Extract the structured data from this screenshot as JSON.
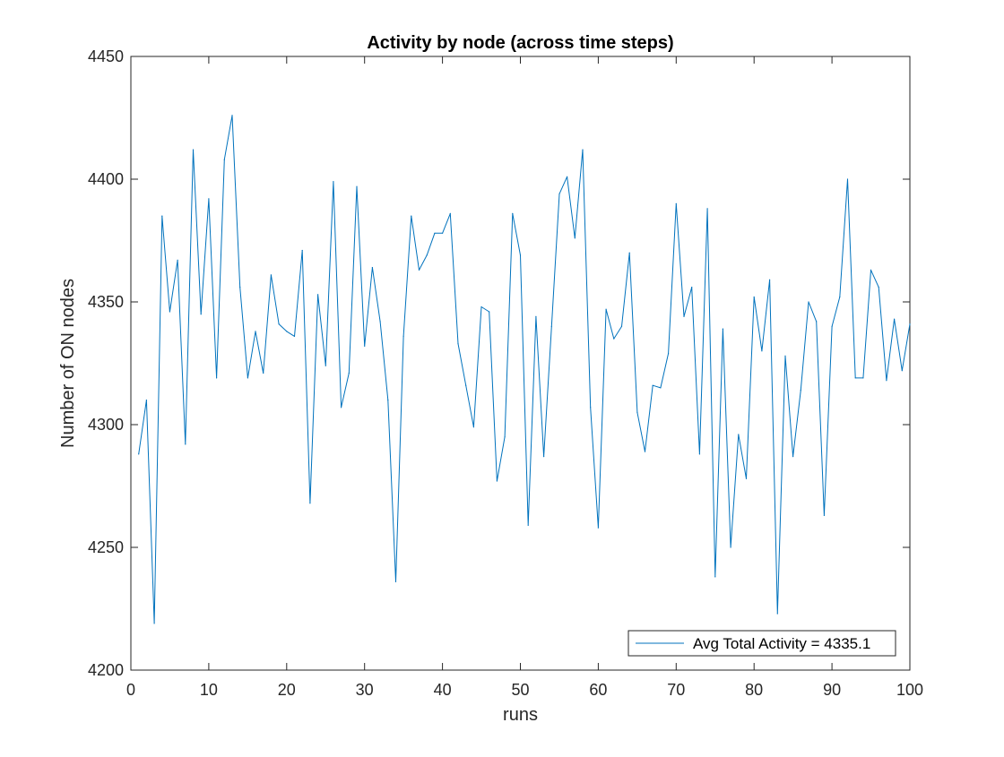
{
  "chart_data": {
    "type": "line",
    "title": "Activity by node (across time steps)",
    "xlabel": "runs",
    "ylabel": "Number of ON nodes",
    "xlim": [
      0,
      100
    ],
    "ylim": [
      4200,
      4450
    ],
    "xticks": [
      0,
      10,
      20,
      30,
      40,
      50,
      60,
      70,
      80,
      90,
      100
    ],
    "yticks": [
      4200,
      4250,
      4300,
      4350,
      4400,
      4450
    ],
    "grid": false,
    "legend_position": "bottom-right",
    "series": [
      {
        "name": "Avg Total Activity = 4335.1",
        "color": "#0072BD",
        "x": [
          1,
          2,
          3,
          4,
          5,
          6,
          7,
          8,
          9,
          10,
          11,
          12,
          13,
          14,
          15,
          16,
          17,
          18,
          19,
          20,
          21,
          22,
          23,
          24,
          25,
          26,
          27,
          28,
          29,
          30,
          31,
          32,
          33,
          34,
          35,
          36,
          37,
          38,
          39,
          40,
          41,
          42,
          43,
          44,
          45,
          46,
          47,
          48,
          49,
          50,
          51,
          52,
          53,
          54,
          55,
          56,
          57,
          58,
          59,
          60,
          61,
          62,
          63,
          64,
          65,
          66,
          67,
          68,
          69,
          70,
          71,
          72,
          73,
          74,
          75,
          76,
          77,
          78,
          79,
          80,
          81,
          82,
          83,
          84,
          85,
          86,
          87,
          88,
          89,
          90,
          91,
          92,
          93,
          94,
          95,
          96,
          97,
          98,
          99,
          100
        ],
        "values": [
          4288,
          4310,
          4219,
          4385,
          4346,
          4367,
          4292,
          4412,
          4345,
          4392,
          4319,
          4408,
          4426,
          4356,
          4319,
          4338,
          4321,
          4361,
          4341,
          4338,
          4336,
          4371,
          4268,
          4353,
          4324,
          4399,
          4307,
          4321,
          4397,
          4332,
          4364,
          4342,
          4310,
          4236,
          4336,
          4385,
          4363,
          4369,
          4378,
          4378,
          4386,
          4333,
          4316,
          4299,
          4348,
          4346,
          4277,
          4295,
          4386,
          4369,
          4259,
          4344,
          4287,
          4340,
          4394,
          4401,
          4376,
          4412,
          4307,
          4258,
          4347,
          4335,
          4340,
          4370,
          4305,
          4289,
          4316,
          4315,
          4329,
          4390,
          4344,
          4356,
          4288,
          4388,
          4238,
          4339,
          4250,
          4296,
          4278,
          4352,
          4330,
          4359,
          4223,
          4328,
          4287,
          4314,
          4350,
          4342,
          4263,
          4340,
          4352,
          4400,
          4319,
          4319,
          4363,
          4356,
          4318,
          4343,
          4322,
          4341
        ]
      }
    ]
  }
}
